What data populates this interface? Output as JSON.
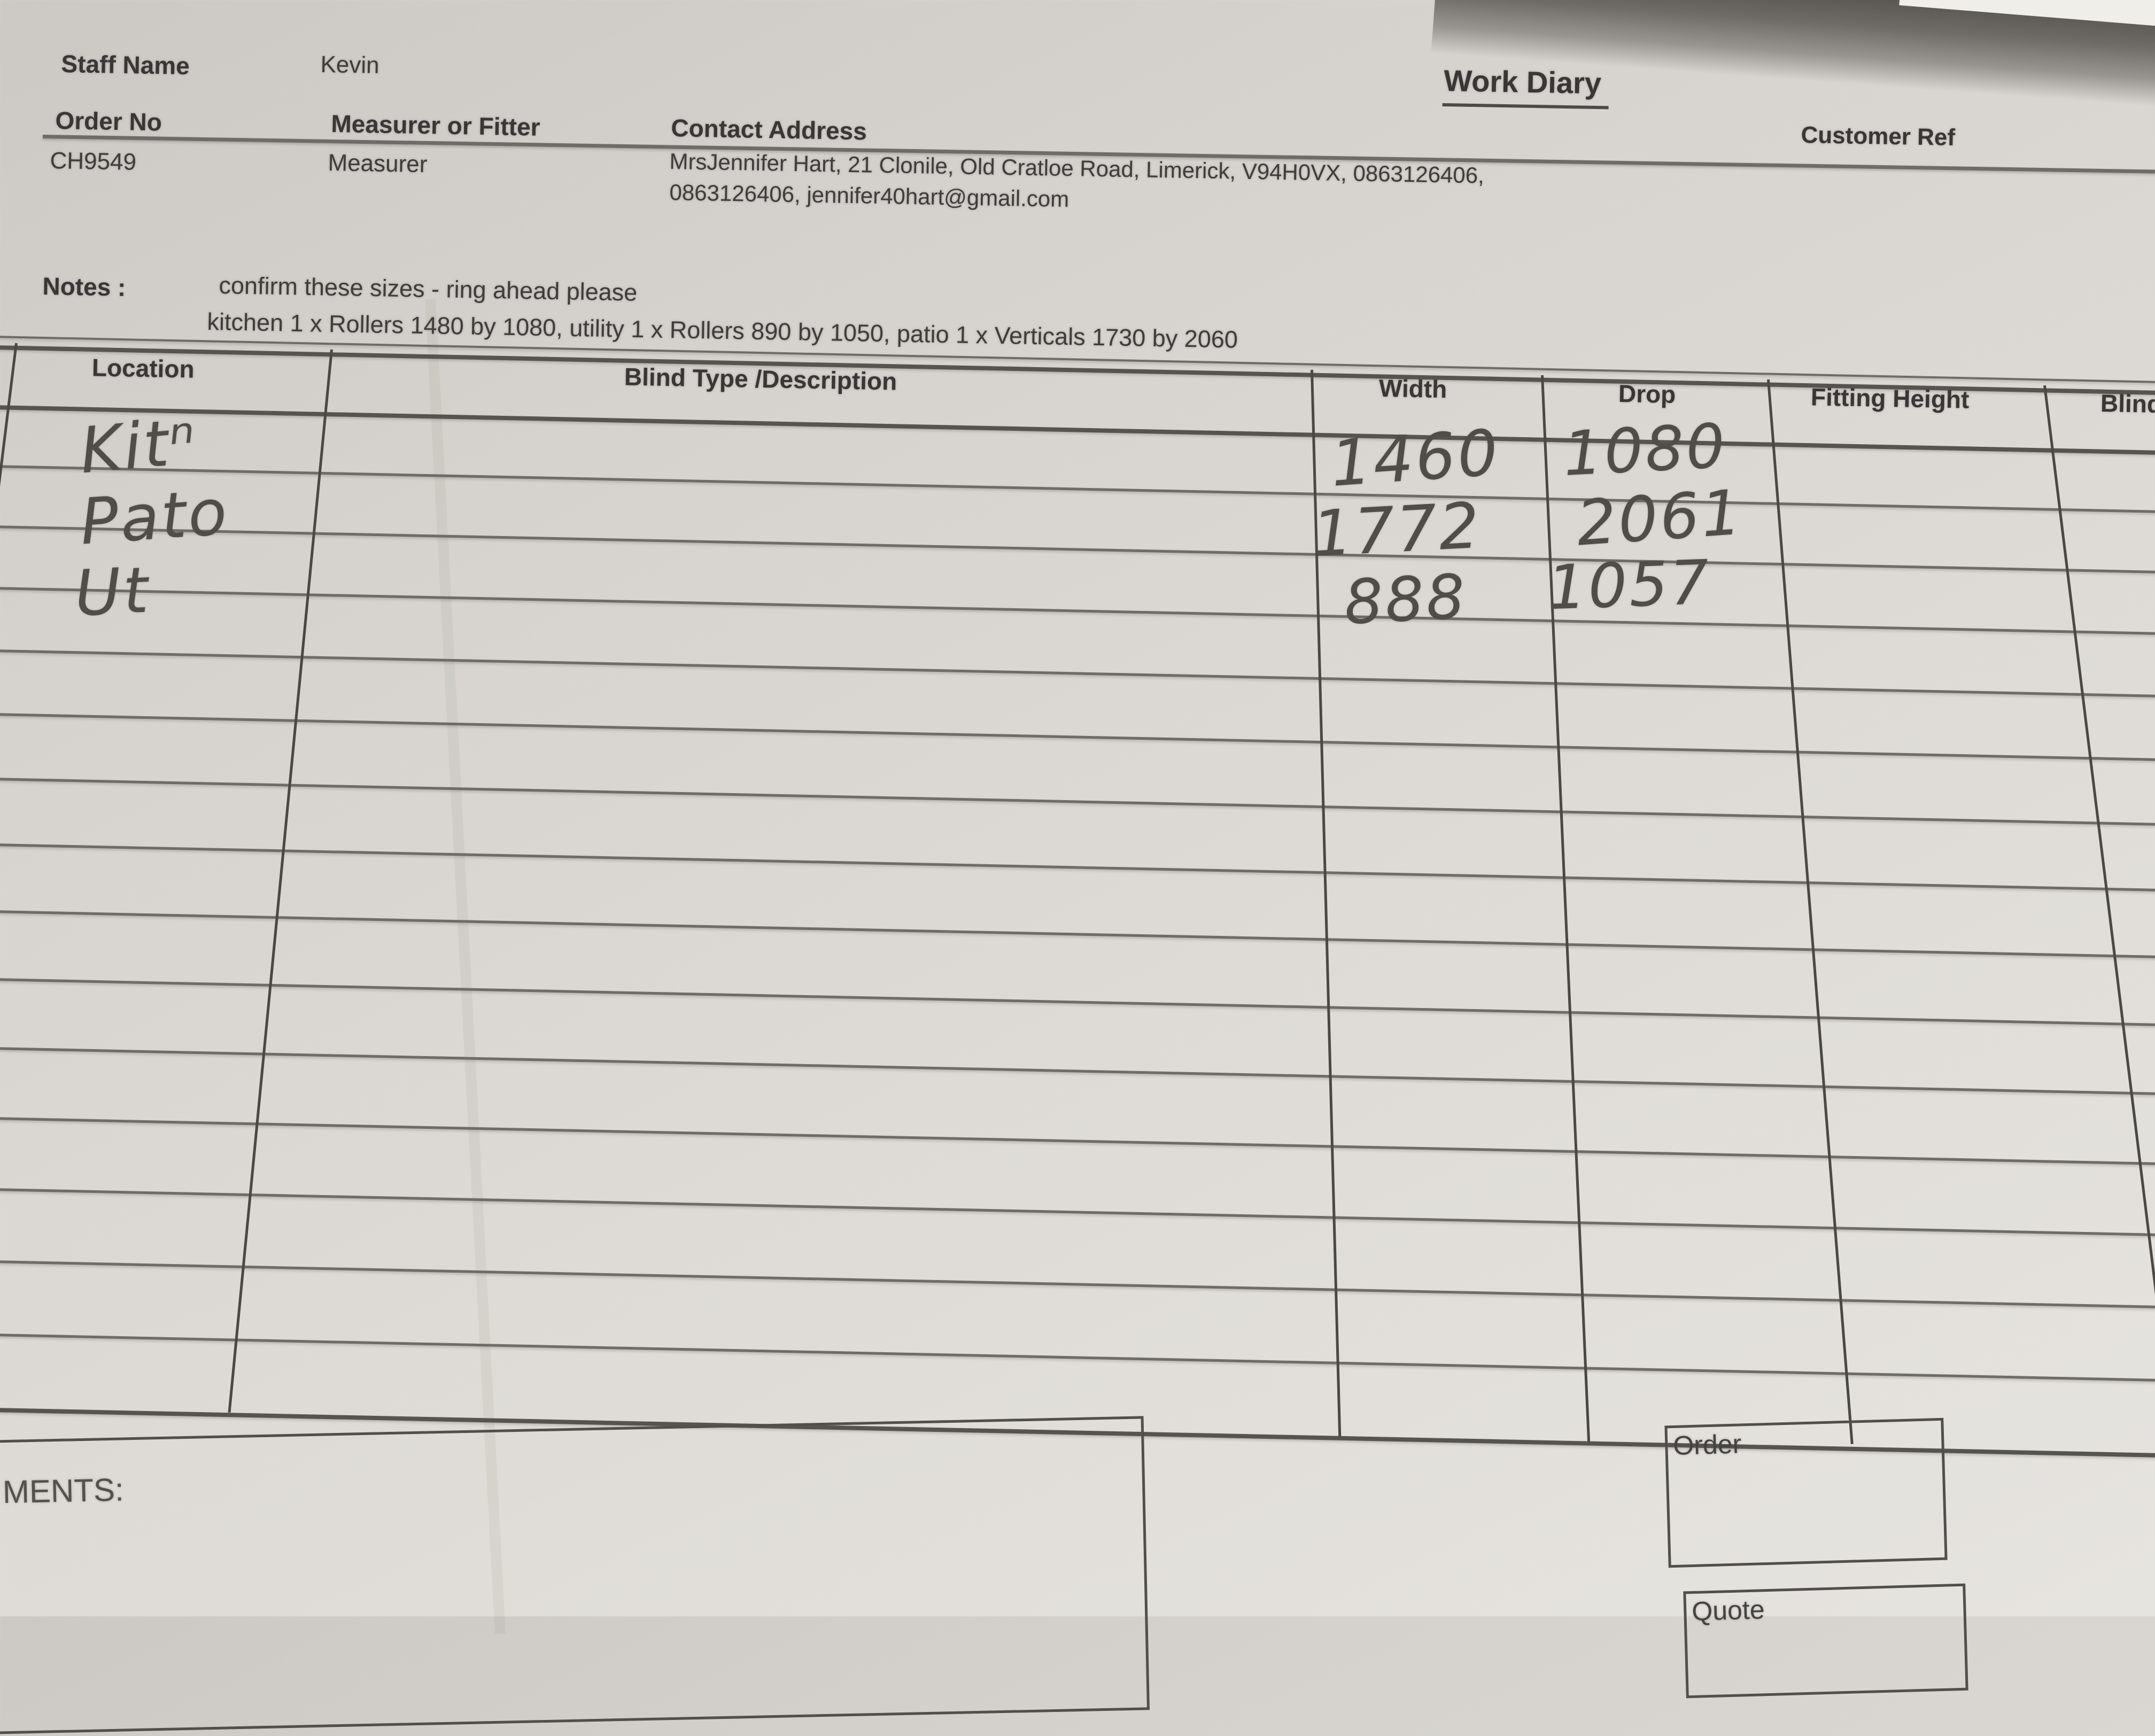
{
  "header": {
    "staff_name_label": "Staff Name",
    "staff_name_value": "Kevin",
    "title": "Work Diary",
    "order_no_label": "Order No",
    "order_no_value": "CH9549",
    "measurer_label": "Measurer or Fitter",
    "measurer_value": "Measurer",
    "contact_label": "Contact Address",
    "contact_line1": "MrsJennifer Hart, 21 Clonile, Old Cratloe Road, Limerick, V94H0VX, 0863126406,",
    "contact_line2": "0863126406, jennifer40hart@gmail.com",
    "customer_ref_label": "Customer Ref"
  },
  "notes": {
    "label": "Notes :",
    "line1": "confirm these sizes - ring ahead please",
    "line2": "kitchen 1 x Rollers 1480 by 1080, utility 1 x Rollers 890 by 1050, patio 1 x Verticals 1730 by 2060"
  },
  "table": {
    "headers": [
      "Location",
      "Blind Type /Description",
      "Width",
      "Drop",
      "Fitting Height",
      "Blind"
    ],
    "entries": [
      {
        "location": "Kitⁿ",
        "description": "",
        "width": "1460",
        "drop": "1080",
        "fitting_height": ""
      },
      {
        "location": "Pato",
        "description": "",
        "width": "1772",
        "drop": "2061",
        "fitting_height": ""
      },
      {
        "location": "Ut",
        "description": "",
        "width": "888",
        "drop": "1057",
        "fitting_height": ""
      }
    ],
    "total_rows": 15
  },
  "footer": {
    "comments_label": "MENTS:",
    "order_box_label": "Order",
    "quote_box_label": "Quote"
  },
  "colors": {
    "paper": "#dcd9d4",
    "ink": "#3f3d3b",
    "grid_line": "#6e6c68",
    "handwriting": "#504d48"
  }
}
